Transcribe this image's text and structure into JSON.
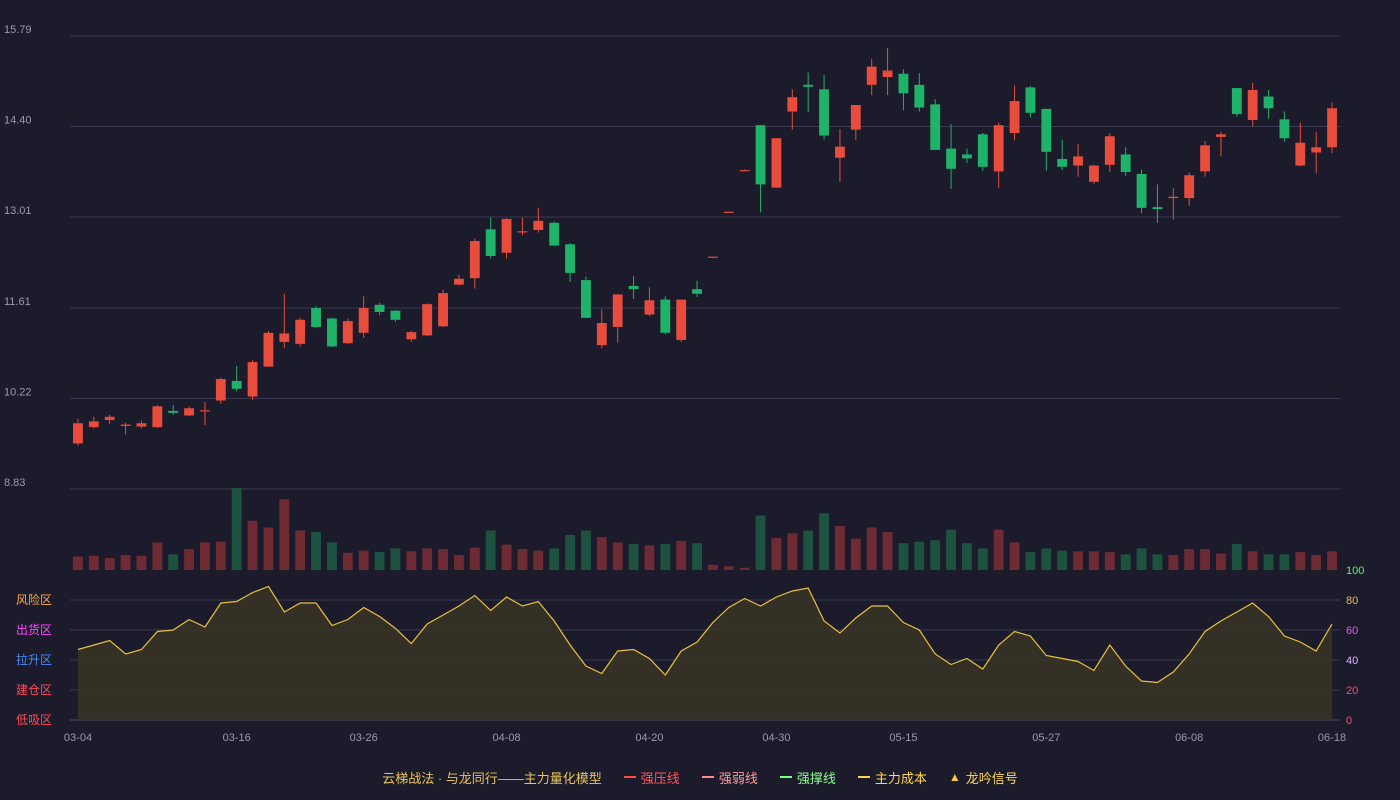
{
  "legend": {
    "title": "云梯战法 · 与龙同行——主力量化模型",
    "items": [
      {
        "label": "强压线",
        "color": "#ff4a4a",
        "style": "solid"
      },
      {
        "label": "强弱线",
        "color": "#ff8a8a",
        "style": "dashed"
      },
      {
        "label": "强撑线",
        "color": "#7cff7c",
        "style": "solid"
      },
      {
        "label": "主力成本",
        "color": "#ffd84a",
        "style": "dashed"
      },
      {
        "label": "龙吟信号",
        "color": "#ffc83a",
        "style": "triangle"
      }
    ]
  },
  "chart_data": {
    "type": "candlestick",
    "price_axis": {
      "ticks": [
        8.83,
        10.22,
        11.61,
        13.01,
        14.4,
        15.79
      ],
      "ylim": [
        8.83,
        15.79
      ]
    },
    "x_labels": [
      "03-04",
      "03-16",
      "03-26",
      "04-08",
      "04-20",
      "04-30",
      "05-15",
      "05-27",
      "06-08",
      "06-18"
    ],
    "colors": {
      "up": "#e74c3c",
      "down": "#1fb36a",
      "vol_up": "#6e2b33",
      "vol_down": "#1d5240",
      "osc_line": "#e8c23a"
    },
    "candles": [
      {
        "o": 9.53,
        "c": 9.84,
        "h": 9.91,
        "l": 9.5
      },
      {
        "o": 9.78,
        "c": 9.87,
        "h": 9.94,
        "l": 9.76
      },
      {
        "o": 9.89,
        "c": 9.94,
        "h": 9.97,
        "l": 9.83
      },
      {
        "o": 9.8,
        "c": 9.82,
        "h": 9.85,
        "l": 9.67
      },
      {
        "o": 9.79,
        "c": 9.84,
        "h": 9.88,
        "l": 9.76
      },
      {
        "o": 9.78,
        "c": 10.1,
        "h": 10.12,
        "l": 9.77
      },
      {
        "o": 10.03,
        "c": 10.0,
        "h": 10.12,
        "l": 9.97
      },
      {
        "o": 9.96,
        "c": 10.07,
        "h": 10.1,
        "l": 9.95
      },
      {
        "o": 10.03,
        "c": 10.04,
        "h": 10.17,
        "l": 9.81
      },
      {
        "o": 10.19,
        "c": 10.52,
        "h": 10.54,
        "l": 10.14
      },
      {
        "o": 10.49,
        "c": 10.37,
        "h": 10.72,
        "l": 10.33
      },
      {
        "o": 10.25,
        "c": 10.78,
        "h": 10.81,
        "l": 10.2
      },
      {
        "o": 10.71,
        "c": 11.23,
        "h": 11.26,
        "l": 10.71
      },
      {
        "o": 11.09,
        "c": 11.22,
        "h": 11.83,
        "l": 11.0
      },
      {
        "o": 11.06,
        "c": 11.43,
        "h": 11.46,
        "l": 11.02
      },
      {
        "o": 11.61,
        "c": 11.32,
        "h": 11.64,
        "l": 11.3
      },
      {
        "o": 11.45,
        "c": 11.02,
        "h": 11.46,
        "l": 11.01
      },
      {
        "o": 11.07,
        "c": 11.41,
        "h": 11.45,
        "l": 11.06
      },
      {
        "o": 11.23,
        "c": 11.61,
        "h": 11.79,
        "l": 11.15
      },
      {
        "o": 11.66,
        "c": 11.55,
        "h": 11.69,
        "l": 11.5
      },
      {
        "o": 11.57,
        "c": 11.43,
        "h": 11.58,
        "l": 11.4
      },
      {
        "o": 11.13,
        "c": 11.24,
        "h": 11.26,
        "l": 11.09
      },
      {
        "o": 11.19,
        "c": 11.67,
        "h": 11.68,
        "l": 11.18
      },
      {
        "o": 11.33,
        "c": 11.84,
        "h": 11.89,
        "l": 11.32
      },
      {
        "o": 11.97,
        "c": 12.06,
        "h": 12.12,
        "l": 11.96
      },
      {
        "o": 12.07,
        "c": 12.64,
        "h": 12.68,
        "l": 11.91
      },
      {
        "o": 12.82,
        "c": 12.41,
        "h": 13.0,
        "l": 12.37
      },
      {
        "o": 12.46,
        "c": 12.98,
        "h": 12.99,
        "l": 12.37
      },
      {
        "o": 12.78,
        "c": 12.79,
        "h": 13.0,
        "l": 12.73
      },
      {
        "o": 12.81,
        "c": 12.95,
        "h": 13.15,
        "l": 12.77
      },
      {
        "o": 12.92,
        "c": 12.57,
        "h": 12.94,
        "l": 12.56
      },
      {
        "o": 12.59,
        "c": 12.15,
        "h": 12.61,
        "l": 12.01
      },
      {
        "o": 12.04,
        "c": 11.46,
        "h": 12.09,
        "l": 11.46
      },
      {
        "o": 11.04,
        "c": 11.38,
        "h": 11.59,
        "l": 10.99
      },
      {
        "o": 11.32,
        "c": 11.82,
        "h": 11.82,
        "l": 11.08
      },
      {
        "o": 11.95,
        "c": 11.9,
        "h": 12.1,
        "l": 11.75
      },
      {
        "o": 11.51,
        "c": 11.73,
        "h": 11.93,
        "l": 11.49
      },
      {
        "o": 11.74,
        "c": 11.23,
        "h": 11.79,
        "l": 11.21
      },
      {
        "o": 11.12,
        "c": 11.74,
        "h": 11.74,
        "l": 11.09
      },
      {
        "o": 11.9,
        "c": 11.83,
        "h": 12.03,
        "l": 11.78
      },
      {
        "o": 12.39,
        "c": 12.4,
        "h": 12.4,
        "l": 12.39
      },
      {
        "o": 13.08,
        "c": 13.09,
        "h": 13.09,
        "l": 13.08
      },
      {
        "o": 13.72,
        "c": 13.73,
        "h": 13.74,
        "l": 13.72
      },
      {
        "o": 14.42,
        "c": 13.51,
        "h": 14.42,
        "l": 13.08
      },
      {
        "o": 13.46,
        "c": 14.22,
        "h": 14.22,
        "l": 13.46
      },
      {
        "o": 14.63,
        "c": 14.85,
        "h": 14.97,
        "l": 14.35
      },
      {
        "o": 15.04,
        "c": 15.01,
        "h": 15.23,
        "l": 14.62
      },
      {
        "o": 14.97,
        "c": 14.26,
        "h": 15.19,
        "l": 14.2
      },
      {
        "o": 13.92,
        "c": 14.09,
        "h": 14.36,
        "l": 13.55
      },
      {
        "o": 14.35,
        "c": 14.73,
        "h": 14.73,
        "l": 14.19
      },
      {
        "o": 15.04,
        "c": 15.32,
        "h": 15.44,
        "l": 14.88
      },
      {
        "o": 15.16,
        "c": 15.26,
        "h": 15.61,
        "l": 14.88
      },
      {
        "o": 15.21,
        "c": 14.91,
        "h": 15.28,
        "l": 14.65
      },
      {
        "o": 15.04,
        "c": 14.69,
        "h": 15.22,
        "l": 14.63
      },
      {
        "o": 14.74,
        "c": 14.04,
        "h": 14.82,
        "l": 14.06
      },
      {
        "o": 14.06,
        "c": 13.75,
        "h": 14.44,
        "l": 13.44
      },
      {
        "o": 13.97,
        "c": 13.91,
        "h": 14.06,
        "l": 13.84
      },
      {
        "o": 14.28,
        "c": 13.78,
        "h": 14.3,
        "l": 13.72
      },
      {
        "o": 13.71,
        "c": 14.42,
        "h": 14.46,
        "l": 13.45
      },
      {
        "o": 14.3,
        "c": 14.79,
        "h": 15.03,
        "l": 14.19
      },
      {
        "o": 15.0,
        "c": 14.61,
        "h": 15.02,
        "l": 14.54
      },
      {
        "o": 14.67,
        "c": 14.01,
        "h": 14.67,
        "l": 13.72
      },
      {
        "o": 13.9,
        "c": 13.78,
        "h": 14.2,
        "l": 13.73
      },
      {
        "o": 13.8,
        "c": 13.94,
        "h": 14.13,
        "l": 13.63
      },
      {
        "o": 13.55,
        "c": 13.8,
        "h": 13.81,
        "l": 13.52
      },
      {
        "o": 13.81,
        "c": 14.25,
        "h": 14.3,
        "l": 13.7
      },
      {
        "o": 13.97,
        "c": 13.7,
        "h": 14.08,
        "l": 13.64
      },
      {
        "o": 13.67,
        "c": 13.15,
        "h": 13.74,
        "l": 13.07
      },
      {
        "o": 13.16,
        "c": 13.13,
        "h": 13.51,
        "l": 12.92
      },
      {
        "o": 13.3,
        "c": 13.32,
        "h": 13.45,
        "l": 12.97
      },
      {
        "o": 13.3,
        "c": 13.65,
        "h": 13.69,
        "l": 13.18
      },
      {
        "o": 13.71,
        "c": 14.11,
        "h": 14.18,
        "l": 13.63
      },
      {
        "o": 14.24,
        "c": 14.28,
        "h": 14.32,
        "l": 13.94
      },
      {
        "o": 14.99,
        "c": 14.59,
        "h": 14.99,
        "l": 14.55
      },
      {
        "o": 14.5,
        "c": 14.96,
        "h": 15.07,
        "l": 14.4
      },
      {
        "o": 14.86,
        "c": 14.68,
        "h": 14.96,
        "l": 14.52
      },
      {
        "o": 14.51,
        "c": 14.22,
        "h": 14.63,
        "l": 14.17
      },
      {
        "o": 13.8,
        "c": 14.15,
        "h": 14.46,
        "l": 13.79
      },
      {
        "o": 14.0,
        "c": 14.08,
        "h": 14.32,
        "l": 13.68
      },
      {
        "o": 14.08,
        "c": 14.68,
        "h": 14.77,
        "l": 13.99
      }
    ],
    "volume": {
      "max": 110,
      "values": [
        18,
        19,
        16,
        20,
        19,
        37,
        21,
        28,
        37,
        38,
        110,
        66,
        57,
        95,
        53,
        51,
        37,
        23,
        26,
        24,
        29,
        25,
        29,
        28,
        20,
        30,
        53,
        34,
        28,
        26,
        29,
        47,
        53,
        44,
        37,
        35,
        33,
        35,
        39,
        36,
        7,
        5,
        3,
        73,
        43,
        49,
        53,
        76,
        59,
        42,
        57,
        51,
        36,
        38,
        40,
        54,
        36,
        29,
        54,
        37,
        24,
        29,
        26,
        25,
        25,
        24,
        21,
        29,
        21,
        20,
        28,
        28,
        22,
        35,
        25,
        21,
        21,
        24,
        20,
        25
      ]
    },
    "oscillator": {
      "ylim": [
        0,
        100
      ],
      "right_ticks": [
        0,
        20,
        40,
        60,
        80,
        100
      ],
      "right_tick_colors": [
        "#ff4a6a",
        "#ff4a6a",
        "#e0b0ff",
        "#ff4aff",
        "#f0b84a",
        "#4aff4a"
      ],
      "zones": [
        {
          "label": "低吸区",
          "color": "#ff4a5a"
        },
        {
          "label": "建仓区",
          "color": "#ff4a5a"
        },
        {
          "label": "拉升区",
          "color": "#4a8aff"
        },
        {
          "label": "出货区",
          "color": "#ff4aff"
        },
        {
          "label": "风险区",
          "color": "#ffa83a"
        }
      ],
      "values": [
        47,
        50,
        53,
        44,
        47,
        59,
        60,
        67,
        62,
        78,
        79,
        85,
        89,
        72,
        78,
        78,
        63,
        67,
        75,
        69,
        61,
        51,
        64,
        70,
        76,
        83,
        73,
        82,
        76,
        79,
        66,
        50,
        36,
        31,
        46,
        47,
        41,
        30,
        46,
        52,
        65,
        75,
        81,
        76,
        82,
        86,
        88,
        66,
        58,
        68,
        76,
        76,
        65,
        60,
        44,
        37,
        41,
        34,
        50,
        59,
        56,
        43,
        41,
        39,
        33,
        50,
        36,
        26,
        25,
        32,
        44,
        59,
        66,
        72,
        78,
        69,
        56,
        52,
        46,
        64
      ]
    }
  }
}
